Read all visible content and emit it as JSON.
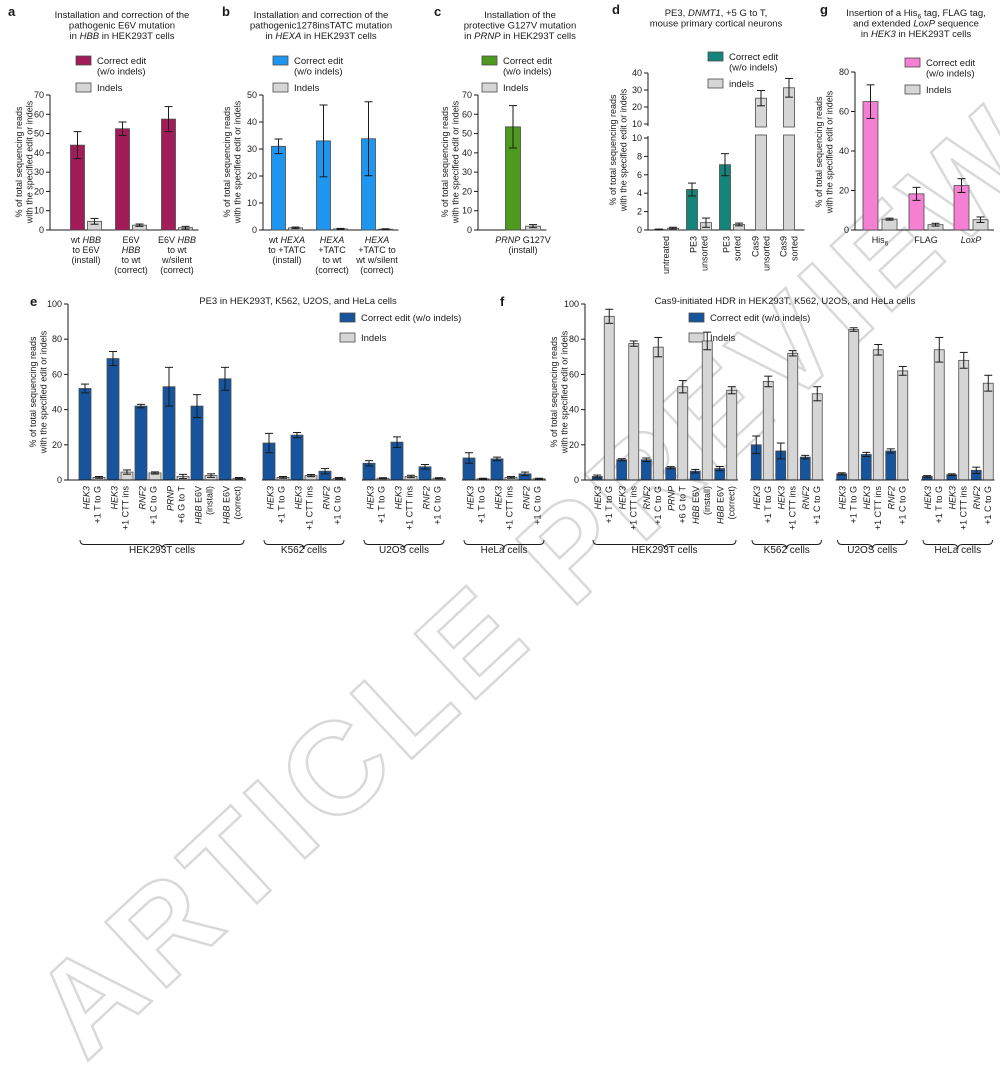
{
  "figure": {
    "watermark": "ARTICLE PREVIEW",
    "ylabel_shared": "% of total sequencing reads\nwith the specified edit or indels",
    "indel_color": "#d6d6d6"
  },
  "chart_data": [
    {
      "id": "a",
      "type": "bar",
      "title": "Installation and correction of the\npathogenic E6V mutation\nin *HBB* in HEK293T cells",
      "ylabel": "% of total sequencing reads\nwith the specified edit or indels",
      "legend": [
        "Correct edit\n(w/o indels)",
        "Indels"
      ],
      "bar_color": "#a11c58",
      "ymin": 0,
      "ymax": 70,
      "yticks": [
        0,
        10,
        20,
        30,
        40,
        50,
        60,
        70
      ],
      "categories": [
        "wt *HBB*\nto E6V\n(install)",
        "E6V\n*HBB*\nto wt\n(correct)",
        "E6V *HBB*\nto wt\nw/silent\n(correct)"
      ],
      "correct": [
        44,
        52.5,
        57.5
      ],
      "correct_err": [
        7,
        3.5,
        6.5
      ],
      "indels": [
        4.5,
        2.5,
        1.2
      ],
      "indels_err": [
        1.5,
        0.6,
        0.7
      ]
    },
    {
      "id": "b",
      "type": "bar",
      "title": "Installation and correction of the\npathogenic1278insTATC mutation\nin *HEXA* in HEK293T cells",
      "ylabel": "% of total sequencing reads\nwith the specified edit or indels",
      "legend": [
        "Correct edit\n(w/o indels)",
        "Indels"
      ],
      "bar_color": "#1e96f0",
      "ymin": 0,
      "ymax": 50,
      "yticks": [
        0,
        10,
        20,
        30,
        40,
        50
      ],
      "categories": [
        "wt *HEXA*\nto +TATC\n(install)",
        "*HEXA*\n+TATC\nto wt\n(correct)",
        "*HEXA*\n+TATC to\nwt w/silent\n(correct)"
      ],
      "correct": [
        31,
        33,
        33.8
      ],
      "correct_err": [
        2.7,
        13.3,
        13.7
      ],
      "indels": [
        0.8,
        0.4,
        0.3
      ],
      "indels_err": [
        0.3,
        0.2,
        0.15
      ]
    },
    {
      "id": "c",
      "type": "bar",
      "title": "Installation of the\nprotective G127V mutation\nin *PRNP* in HEK293T cells",
      "ylabel": "% of total sequencing reads\nwith the specified edit or indels",
      "legend": [
        "Correct edit\n(w/o indels)",
        "Indels"
      ],
      "bar_color": "#4e9a1e",
      "ymin": 0,
      "ymax": 70,
      "yticks": [
        0,
        10,
        20,
        30,
        40,
        50,
        60,
        70
      ],
      "categories": [
        "*PRNP* G127V\n(install)"
      ],
      "correct": [
        53.5
      ],
      "correct_err": [
        11
      ],
      "indels": [
        2
      ],
      "indels_err": [
        0.8
      ]
    },
    {
      "id": "d",
      "type": "bar",
      "title": "PE3, *DNMT1*, +5 G to T,\nmouse primary cortical neurons",
      "ylabel": "% of total sequencing reads\nwith the specified edit or indels",
      "legend": [
        "Correct edit\n(w/o indels)",
        "indels"
      ],
      "bar_color": "#15857b",
      "axis_break": {
        "lower_min": 0,
        "lower_max": 10,
        "lower_ticks": [
          0,
          2,
          4,
          6,
          8,
          10
        ],
        "upper_min": 10,
        "upper_max": 40,
        "upper_ticks": [
          10,
          20,
          30,
          40
        ]
      },
      "categories": [
        "untreated",
        "PE3\nunsorted",
        "PE3\nsorted",
        "Cas9\nunsorted",
        "Cas9\nsorted"
      ],
      "correct": [
        0.05,
        4.4,
        7.1,
        null,
        null
      ],
      "correct_err": [
        0.05,
        0.7,
        1.2,
        null,
        null
      ],
      "indels": [
        0.2,
        0.8,
        0.6,
        25.2,
        31.3
      ],
      "indels_err": [
        0.1,
        0.5,
        0.15,
        4.5,
        5.5
      ]
    },
    {
      "id": "g",
      "type": "bar",
      "title": "Insertion of a His~6~ tag, FLAG tag,\nand extended *LoxP* sequence\nin *HEK3* in HEK293T cells",
      "ylabel": "% of total sequencing reads\nwith the specified edit or indels",
      "legend": [
        "Correct edit\n(w/o indels)",
        "Indels"
      ],
      "bar_color": "#f57fd3",
      "ymin": 0,
      "ymax": 80,
      "yticks": [
        0,
        20,
        40,
        60,
        80
      ],
      "categories": [
        "His~6~",
        "FLAG",
        "*LoxP*"
      ],
      "correct": [
        65,
        18.3,
        22.5
      ],
      "correct_err": [
        8.5,
        3.3,
        3.5
      ],
      "indels": [
        5.5,
        2.7,
        5.2
      ],
      "indels_err": [
        0.5,
        0.7,
        1.4
      ]
    },
    {
      "id": "e",
      "type": "bar",
      "title": "PE3 in HEK293T, K562, U2OS, and HeLa cells",
      "ylabel": "% of total sequencing reads\nwith the specified edit or indels",
      "legend": [
        "Correct edit (w/o indels)",
        "Indels"
      ],
      "bar_color": "#17549e",
      "ymin": 0,
      "ymax": 100,
      "yticks": [
        0,
        20,
        40,
        60,
        80,
        100
      ],
      "groups": [
        {
          "label": "HEK293T cells",
          "categories": [
            "*HEK3*\n+1 T to G",
            "*HEK3*\n+1 CTT ins",
            "*RNF2*\n+1 C to G",
            "*PRNP*\n+6 G to T",
            "*HBB* E6V\n(install)",
            "*HBB* E6V\n(correct)"
          ],
          "correct": [
            52,
            69,
            42,
            53,
            42,
            57.5
          ],
          "correct_err": [
            2.5,
            4,
            1,
            11,
            6.5,
            6.5
          ],
          "indels": [
            1.5,
            4.5,
            4,
            2,
            2.5,
            1
          ],
          "indels_err": [
            0.5,
            1.2,
            0.6,
            1.2,
            1,
            0.4
          ]
        },
        {
          "label": "K562 cells",
          "categories": [
            "*HEK3*\n+1 T to G",
            "*HEK3*\n+1 CTT ins",
            "*RNF2*\n+1 C to G"
          ],
          "correct": [
            21,
            25.5,
            5
          ],
          "correct_err": [
            5.5,
            1.5,
            1.5
          ],
          "indels": [
            1.5,
            2.5,
            1
          ],
          "indels_err": [
            0.5,
            0.6,
            0.4
          ]
        },
        {
          "label": "U2OS cells",
          "categories": [
            "*HEK3*\n+1 T to G",
            "*HEK3*\n+1 CTT ins",
            "*RNF2*\n+1 C to G"
          ],
          "correct": [
            9.5,
            21.5,
            7.5
          ],
          "correct_err": [
            1.5,
            3,
            1.3
          ],
          "indels": [
            1,
            2,
            1
          ],
          "indels_err": [
            0.3,
            0.7,
            0.3
          ]
        },
        {
          "label": "HeLa cells",
          "categories": [
            "*HEK3*\n+1 T to G",
            "*HEK3*\n+1 CTT ins",
            "*RNF2*\n+1 C to G"
          ],
          "correct": [
            12.5,
            12,
            3.5
          ],
          "correct_err": [
            3,
            1,
            1
          ],
          "indels": [
            0.7,
            1.5,
            0.7
          ],
          "indels_err": [
            0.3,
            0.5,
            0.3
          ]
        }
      ]
    },
    {
      "id": "f",
      "type": "bar",
      "title": "Cas9-initiated HDR in HEK293T, K562, U2OS, and HeLa cells",
      "ylabel": "% of total sequencing reads\nwith the specified edit or indels",
      "legend": [
        "Correct edit (w/o indels)",
        "Indels"
      ],
      "bar_color": "#17549e",
      "ymin": 0,
      "ymax": 100,
      "yticks": [
        0,
        20,
        40,
        60,
        80,
        100
      ],
      "groups": [
        {
          "label": "HEK293T cells",
          "categories": [
            "*HEK3*\n+1 T to G",
            "*HEK3*\n+1 CTT ins",
            "*RNF2*\n+1 C to G",
            "*PRNP*\n+6 G to T",
            "*HBB* E6V\n(install)",
            "*HBB* E6V\n(correct)"
          ],
          "correct": [
            2,
            11.5,
            11.5,
            7,
            5,
            6.5
          ],
          "correct_err": [
            0.8,
            0.6,
            1,
            0.6,
            1,
            1.2
          ],
          "indels": [
            93,
            77.5,
            75.5,
            53,
            79,
            51
          ],
          "indels_err": [
            4,
            1.5,
            5.5,
            3.5,
            5,
            2
          ]
        },
        {
          "label": "K562 cells",
          "categories": [
            "*HEK3*\n+1 T to G",
            "*HEK3*\n+1 CTT ins",
            "*RNF2*\n+1 C to G"
          ],
          "correct": [
            20,
            16.5,
            13
          ],
          "correct_err": [
            5,
            4.5,
            1
          ],
          "indels": [
            56,
            72,
            49
          ],
          "indels_err": [
            3,
            1.5,
            4
          ]
        },
        {
          "label": "U2OS cells",
          "categories": [
            "*HEK3*\n+1 T to G",
            "*HEK3*\n+1 CTT ins",
            "*RNF2*\n+1 C to G"
          ],
          "correct": [
            3.5,
            14.5,
            16.5
          ],
          "correct_err": [
            0.6,
            1.2,
            1.2
          ],
          "indels": [
            85.5,
            74,
            62
          ],
          "indels_err": [
            1,
            3,
            2.5
          ]
        },
        {
          "label": "HeLa cells",
          "categories": [
            "*HEK3*\n+1 T to G",
            "*HEK3*\n+1 CTT ins",
            "*RNF2*\n+1 C to G"
          ],
          "correct": [
            2,
            3,
            5.5
          ],
          "correct_err": [
            0.5,
            0.5,
            1.8
          ],
          "indels": [
            74,
            68,
            55
          ],
          "indels_err": [
            7,
            4.5,
            4.5
          ]
        }
      ]
    }
  ]
}
